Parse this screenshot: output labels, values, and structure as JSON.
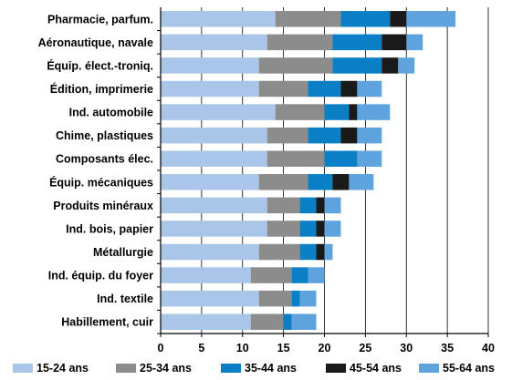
{
  "chart_data": {
    "type": "bar",
    "orientation": "horizontal",
    "stacked": true,
    "categories": [
      "Pharmacie, parfum.",
      "Aéronautique, navale",
      "Équip. élect.-troniq.",
      "Édition, imprimerie",
      "Ind. automobile",
      "Chime, plastiques",
      "Composants élec.",
      "Équip. mécaniques",
      "Produits minéraux",
      "Ind. bois, papier",
      "Métallurgie",
      "Ind. équip. du foyer",
      "Ind. textile",
      "Habillement, cuir"
    ],
    "series": [
      {
        "name": "15-24 ans",
        "color": "#a9c6e8",
        "values": [
          14,
          13,
          12,
          12,
          14,
          13,
          13,
          12,
          13,
          13,
          12,
          11,
          12,
          11
        ]
      },
      {
        "name": "25-34 ans",
        "color": "#8c8c8c",
        "values": [
          8,
          8,
          9,
          6,
          6,
          5,
          7,
          6,
          4,
          4,
          5,
          5,
          4,
          4
        ]
      },
      {
        "name": "35-44 ans",
        "color": "#0a7fc6",
        "values": [
          6,
          6,
          6,
          4,
          3,
          4,
          4,
          3,
          2,
          2,
          2,
          2,
          1,
          1
        ]
      },
      {
        "name": "45-54 ans",
        "color": "#1a1a1a",
        "values": [
          2,
          3,
          2,
          2,
          1,
          2,
          0,
          2,
          1,
          1,
          1,
          0,
          0,
          0
        ]
      },
      {
        "name": "55-64 ans",
        "color": "#5ea3de",
        "values": [
          6,
          2,
          2,
          3,
          4,
          3,
          3,
          3,
          2,
          2,
          1,
          2,
          2,
          3
        ]
      }
    ],
    "xlim": [
      0,
      40
    ],
    "xticks": [
      0,
      5,
      10,
      15,
      20,
      25,
      30,
      35,
      40
    ],
    "grid": true,
    "legend_position": "bottom",
    "title": "",
    "xlabel": "",
    "ylabel": ""
  }
}
